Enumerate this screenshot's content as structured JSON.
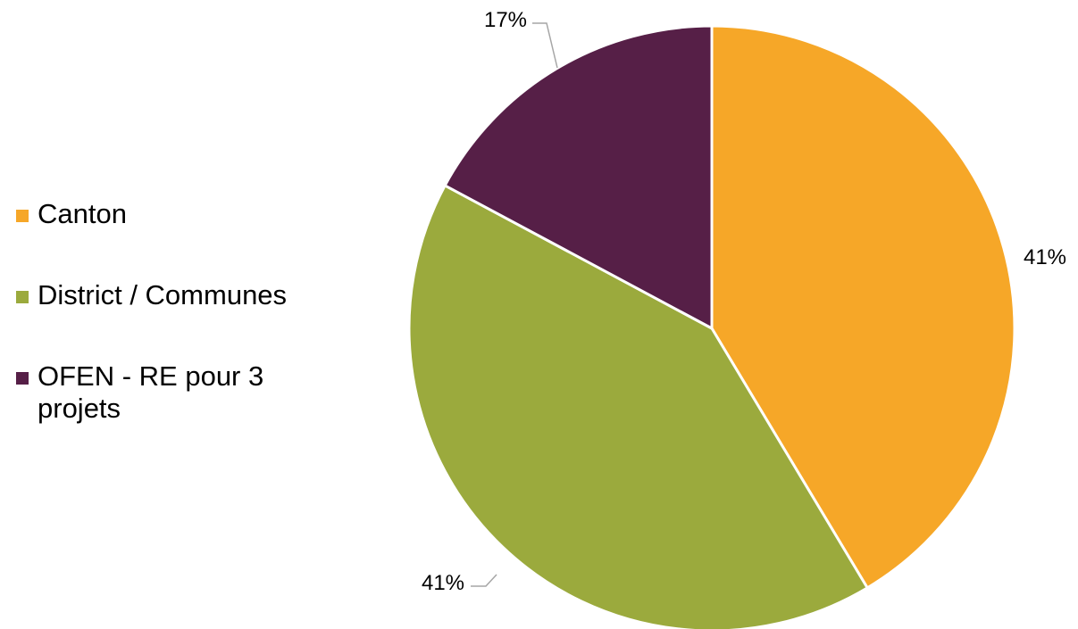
{
  "chart_data": {
    "type": "pie",
    "title": "",
    "categories": [
      "Canton",
      "District / Communes",
      "OFEN - RE pour 3 projets"
    ],
    "values": [
      41,
      41,
      17
    ],
    "data_labels": [
      "41%",
      "41%",
      "17%"
    ],
    "colors": [
      "#F6A728",
      "#9BAA3D",
      "#561F47"
    ],
    "legend_position": "left",
    "start_angle_deg": 0,
    "direction": "clockwise"
  },
  "legend": {
    "items": [
      {
        "label": "Canton",
        "color": "#F6A728"
      },
      {
        "label": "District / Communes",
        "color": "#9BAA3D"
      },
      {
        "label": "OFEN - RE pour 3 projets",
        "color": "#561F47"
      }
    ]
  }
}
